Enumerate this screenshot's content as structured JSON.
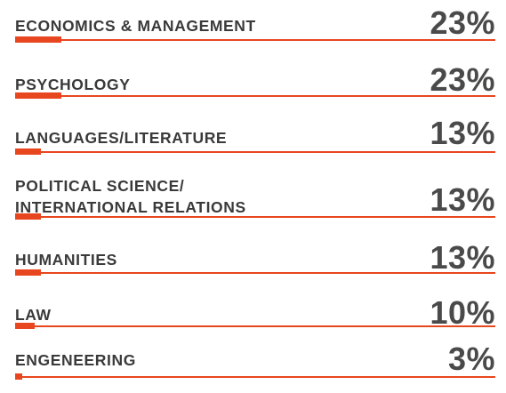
{
  "chart_data": {
    "type": "bar",
    "categories": [
      "ECONOMICS & MANAGEMENT",
      "PSYCHOLOGY",
      "LANGUAGES/LITERATURE",
      "POLITICAL SCIENCE/\nINTERNATIONAL RELATIONS",
      "HUMANITIES",
      "LAW",
      "ENGENEERING"
    ],
    "values": [
      23,
      23,
      13,
      13,
      13,
      10,
      3
    ],
    "value_labels": [
      "23%",
      "23%",
      "13%",
      "13%",
      "13%",
      "10%",
      "3%"
    ],
    "unit": "%",
    "xlim": [
      0,
      100
    ]
  },
  "colors": {
    "accent": "#e8461f",
    "text": "#3a3a3a",
    "value_text": "#4a4a4a"
  }
}
